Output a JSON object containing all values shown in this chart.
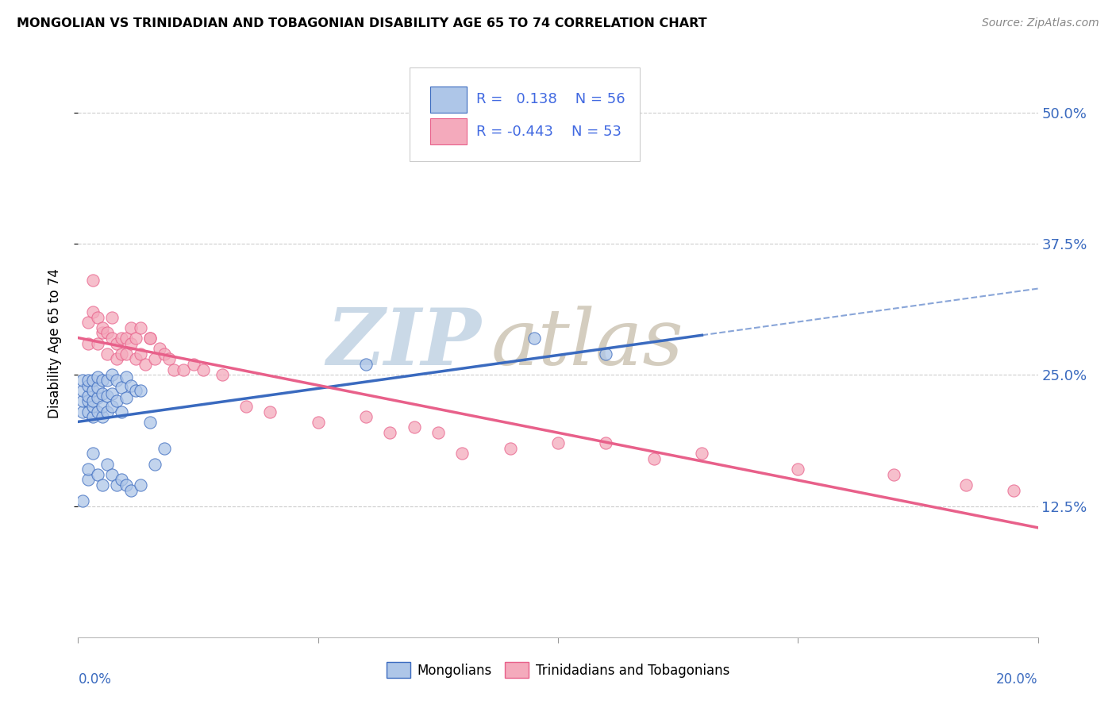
{
  "title": "MONGOLIAN VS TRINIDADIAN AND TOBAGONIAN DISABILITY AGE 65 TO 74 CORRELATION CHART",
  "source": "Source: ZipAtlas.com",
  "ylabel": "Disability Age 65 to 74",
  "ytick_labels": [
    "12.5%",
    "25.0%",
    "37.5%",
    "50.0%"
  ],
  "ytick_values": [
    0.125,
    0.25,
    0.375,
    0.5
  ],
  "xlim": [
    0.0,
    0.2
  ],
  "ylim": [
    0.0,
    0.56
  ],
  "mongolian_R": 0.138,
  "mongolian_N": 56,
  "trinidadian_R": -0.443,
  "trinidadian_N": 53,
  "mongolian_color": "#aec6e8",
  "trinidadian_color": "#f4aabc",
  "mongolian_line_color": "#3a6abf",
  "trinidadian_line_color": "#e8608a",
  "legend_text_color": "#4169e1",
  "watermark_zip_color": "#c5d5e5",
  "watermark_atlas_color": "#d0c8b8",
  "background_color": "#ffffff",
  "grid_color": "#cccccc",
  "mongolian_x": [
    0.001,
    0.001,
    0.001,
    0.001,
    0.002,
    0.002,
    0.002,
    0.002,
    0.002,
    0.003,
    0.003,
    0.003,
    0.003,
    0.003,
    0.004,
    0.004,
    0.004,
    0.004,
    0.005,
    0.005,
    0.005,
    0.005,
    0.006,
    0.006,
    0.006,
    0.007,
    0.007,
    0.007,
    0.008,
    0.008,
    0.009,
    0.009,
    0.01,
    0.01,
    0.011,
    0.012,
    0.013,
    0.015,
    0.016,
    0.018,
    0.001,
    0.002,
    0.002,
    0.003,
    0.004,
    0.005,
    0.006,
    0.007,
    0.008,
    0.009,
    0.01,
    0.011,
    0.013,
    0.06,
    0.095,
    0.11
  ],
  "mongolian_y": [
    0.215,
    0.225,
    0.235,
    0.245,
    0.215,
    0.225,
    0.23,
    0.24,
    0.245,
    0.21,
    0.22,
    0.225,
    0.235,
    0.245,
    0.215,
    0.228,
    0.238,
    0.248,
    0.21,
    0.22,
    0.232,
    0.245,
    0.215,
    0.23,
    0.245,
    0.22,
    0.232,
    0.25,
    0.225,
    0.245,
    0.215,
    0.238,
    0.228,
    0.248,
    0.24,
    0.235,
    0.235,
    0.205,
    0.165,
    0.18,
    0.13,
    0.15,
    0.16,
    0.175,
    0.155,
    0.145,
    0.165,
    0.155,
    0.145,
    0.15,
    0.145,
    0.14,
    0.145,
    0.26,
    0.285,
    0.27
  ],
  "trinidadian_x": [
    0.002,
    0.002,
    0.003,
    0.003,
    0.004,
    0.004,
    0.005,
    0.005,
    0.006,
    0.006,
    0.007,
    0.007,
    0.008,
    0.008,
    0.009,
    0.009,
    0.01,
    0.01,
    0.011,
    0.011,
    0.012,
    0.012,
    0.013,
    0.013,
    0.014,
    0.015,
    0.015,
    0.016,
    0.017,
    0.018,
    0.019,
    0.02,
    0.022,
    0.024,
    0.026,
    0.03,
    0.035,
    0.04,
    0.05,
    0.06,
    0.075,
    0.09,
    0.11,
    0.13,
    0.065,
    0.07,
    0.08,
    0.1,
    0.12,
    0.15,
    0.17,
    0.185,
    0.195
  ],
  "trinidadian_y": [
    0.28,
    0.3,
    0.31,
    0.34,
    0.28,
    0.305,
    0.29,
    0.295,
    0.27,
    0.29,
    0.285,
    0.305,
    0.265,
    0.28,
    0.27,
    0.285,
    0.27,
    0.285,
    0.28,
    0.295,
    0.265,
    0.285,
    0.27,
    0.295,
    0.26,
    0.285,
    0.285,
    0.265,
    0.275,
    0.27,
    0.265,
    0.255,
    0.255,
    0.26,
    0.255,
    0.25,
    0.22,
    0.215,
    0.205,
    0.21,
    0.195,
    0.18,
    0.185,
    0.175,
    0.195,
    0.2,
    0.175,
    0.185,
    0.17,
    0.16,
    0.155,
    0.145,
    0.14
  ]
}
